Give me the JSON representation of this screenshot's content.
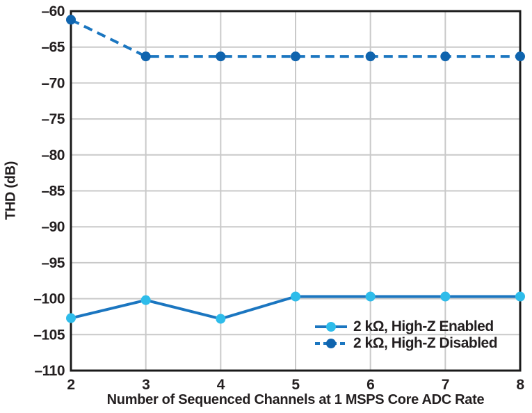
{
  "chart_data": {
    "type": "line",
    "title": "",
    "xlabel": "Number of Sequenced Channels at 1 MSPS Core ADC Rate",
    "ylabel": "THD (dB)",
    "x": [
      2,
      3,
      4,
      5,
      6,
      7,
      8
    ],
    "xtick_labels": [
      "2",
      "3",
      "4",
      "5",
      "6",
      "7",
      "8"
    ],
    "xlim": [
      2,
      8
    ],
    "ylim": [
      -110,
      -60
    ],
    "yticks": [
      -60,
      -65,
      -70,
      -75,
      -80,
      -85,
      -90,
      -95,
      -100,
      -105,
      -110
    ],
    "ytick_labels": [
      "–60",
      "–65",
      "–70",
      "–75",
      "–80",
      "–85",
      "–90",
      "–95",
      "–100",
      "–105",
      "–110"
    ],
    "grid": true,
    "legend_position": "lower right",
    "series": [
      {
        "name": "2 kΩ, High-Z Enabled",
        "values": [
          -102.7,
          -100.2,
          -102.8,
          -99.7,
          -99.7,
          -99.7,
          -99.7
        ],
        "line_style": "solid",
        "line_color": "#1B76C0",
        "marker_color": "#2EBCEA"
      },
      {
        "name": "2 kΩ, High-Z Disabled",
        "values": [
          -61.2,
          -66.3,
          -66.3,
          -66.3,
          -66.3,
          -66.3,
          -66.3
        ],
        "line_style": "dashed",
        "line_color": "#1B76C0",
        "marker_color": "#0F64AE"
      }
    ],
    "colors": {
      "text": "#231F20",
      "grid": "#C9C9C9",
      "frame": "#1A1A1A",
      "background": "#FFFFFF"
    }
  }
}
